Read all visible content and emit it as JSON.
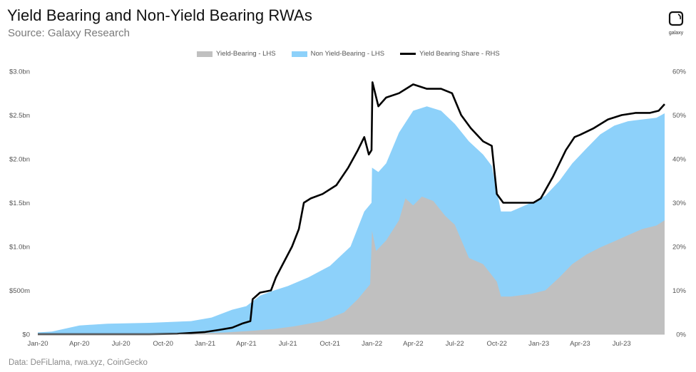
{
  "title": "Yield Bearing and Non-Yield Bearing RWAs",
  "subtitle": "Source: Galaxy Research",
  "footer": "Data: DeFiLlama, rwa.xyz, CoinGecko",
  "logo": {
    "text": "galaxy",
    "icon": "galaxy-logo-icon"
  },
  "colors": {
    "yield": "#c0c0c0",
    "non_yield": "#8dd1fa",
    "share": "#000000"
  },
  "chart_data": {
    "type": "area",
    "title": "Yield Bearing and Non-Yield Bearing RWAs",
    "legend_position": "top-center",
    "grid": false,
    "x_ticks": [
      "Jan-20",
      "Apr-20",
      "Jul-20",
      "Oct-20",
      "Jan-21",
      "Apr-21",
      "Jul-21",
      "Oct-21",
      "Jan-22",
      "Apr-22",
      "Jul-22",
      "Oct-22",
      "Jan-23",
      "Apr-23",
      "Jul-23"
    ],
    "x_range": [
      "2020-01-01",
      "2023-10-03"
    ],
    "y_left": {
      "range": [
        0,
        3.0
      ],
      "unit": "$bn",
      "ticks": [
        "$0",
        "$500m",
        "$1.0bn",
        "$1.5bn",
        "$2.0bn",
        "$2.5bn",
        "$3.0bn"
      ]
    },
    "y_right": {
      "range": [
        0,
        60
      ],
      "unit": "%",
      "ticks": [
        "0%",
        "10%",
        "20%",
        "30%",
        "40%",
        "50%",
        "60%"
      ]
    },
    "series": [
      {
        "name": "Yield-Bearing - LHS",
        "axis": "left",
        "kind": "stacked-area",
        "color": "#c0c0c0",
        "points": [
          [
            "2020-01-01",
            0
          ],
          [
            "2020-06-01",
            0
          ],
          [
            "2020-12-01",
            0.01
          ],
          [
            "2021-02-15",
            0.02
          ],
          [
            "2021-04-15",
            0.04
          ],
          [
            "2021-06-01",
            0.06
          ],
          [
            "2021-07-15",
            0.09
          ],
          [
            "2021-09-15",
            0.15
          ],
          [
            "2021-11-01",
            0.25
          ],
          [
            "2021-12-01",
            0.4
          ],
          [
            "2021-12-28",
            0.57
          ],
          [
            "2022-01-01",
            1.18
          ],
          [
            "2022-01-10",
            0.95
          ],
          [
            "2022-02-01",
            1.07
          ],
          [
            "2022-03-01",
            1.3
          ],
          [
            "2022-03-15",
            1.55
          ],
          [
            "2022-04-01",
            1.47
          ],
          [
            "2022-04-20",
            1.57
          ],
          [
            "2022-05-15",
            1.52
          ],
          [
            "2022-06-10",
            1.35
          ],
          [
            "2022-07-01",
            1.25
          ],
          [
            "2022-08-01",
            0.87
          ],
          [
            "2022-09-01",
            0.8
          ],
          [
            "2022-10-01",
            0.6
          ],
          [
            "2022-10-10",
            0.43
          ],
          [
            "2022-11-01",
            0.43
          ],
          [
            "2022-12-15",
            0.46
          ],
          [
            "2023-01-15",
            0.5
          ],
          [
            "2023-02-15",
            0.65
          ],
          [
            "2023-03-15",
            0.8
          ],
          [
            "2023-04-15",
            0.91
          ],
          [
            "2023-05-15",
            0.99
          ],
          [
            "2023-06-15",
            1.06
          ],
          [
            "2023-07-15",
            1.13
          ],
          [
            "2023-08-15",
            1.2
          ],
          [
            "2023-09-15",
            1.24
          ],
          [
            "2023-10-03",
            1.3
          ]
        ]
      },
      {
        "name": "Non Yield-Bearing - LHS",
        "axis": "left",
        "kind": "stacked-area-total",
        "color": "#8dd1fa",
        "points": [
          [
            "2020-01-01",
            0.02
          ],
          [
            "2020-02-01",
            0.03
          ],
          [
            "2020-04-01",
            0.1
          ],
          [
            "2020-06-01",
            0.12
          ],
          [
            "2020-09-01",
            0.13
          ],
          [
            "2020-12-01",
            0.15
          ],
          [
            "2021-01-15",
            0.19
          ],
          [
            "2021-03-01",
            0.28
          ],
          [
            "2021-04-01",
            0.32
          ],
          [
            "2021-05-01",
            0.44
          ],
          [
            "2021-06-01",
            0.5
          ],
          [
            "2021-07-01",
            0.55
          ],
          [
            "2021-08-15",
            0.65
          ],
          [
            "2021-10-01",
            0.78
          ],
          [
            "2021-11-15",
            1.0
          ],
          [
            "2021-12-15",
            1.4
          ],
          [
            "2021-12-31",
            1.5
          ],
          [
            "2022-01-01",
            1.9
          ],
          [
            "2022-01-15",
            1.85
          ],
          [
            "2022-02-01",
            1.95
          ],
          [
            "2022-03-01",
            2.3
          ],
          [
            "2022-04-01",
            2.55
          ],
          [
            "2022-05-01",
            2.6
          ],
          [
            "2022-06-01",
            2.55
          ],
          [
            "2022-07-01",
            2.4
          ],
          [
            "2022-08-01",
            2.2
          ],
          [
            "2022-09-01",
            2.05
          ],
          [
            "2022-09-20",
            1.92
          ],
          [
            "2022-10-10",
            1.4
          ],
          [
            "2022-11-01",
            1.4
          ],
          [
            "2022-12-15",
            1.5
          ],
          [
            "2023-01-15",
            1.58
          ],
          [
            "2023-02-15",
            1.75
          ],
          [
            "2023-03-15",
            1.95
          ],
          [
            "2023-04-15",
            2.12
          ],
          [
            "2023-05-15",
            2.28
          ],
          [
            "2023-06-15",
            2.38
          ],
          [
            "2023-07-15",
            2.43
          ],
          [
            "2023-08-15",
            2.45
          ],
          [
            "2023-09-15",
            2.47
          ],
          [
            "2023-10-03",
            2.52
          ]
        ]
      },
      {
        "name": "Yield Bearing Share - RHS",
        "axis": "right",
        "kind": "line",
        "color": "#000000",
        "points": [
          [
            "2020-01-01",
            0
          ],
          [
            "2020-09-01",
            0
          ],
          [
            "2020-11-01",
            0.1
          ],
          [
            "2021-01-01",
            0.5
          ],
          [
            "2021-02-01",
            1.0
          ],
          [
            "2021-03-01",
            1.5
          ],
          [
            "2021-03-25",
            2.5
          ],
          [
            "2021-04-10",
            3.0
          ],
          [
            "2021-04-15",
            8.0
          ],
          [
            "2021-05-01",
            9.5
          ],
          [
            "2021-05-25",
            10.0
          ],
          [
            "2021-06-05",
            13.0
          ],
          [
            "2021-06-20",
            16.0
          ],
          [
            "2021-07-10",
            20.0
          ],
          [
            "2021-07-25",
            24.0
          ],
          [
            "2021-08-05",
            30.0
          ],
          [
            "2021-08-20",
            31.0
          ],
          [
            "2021-09-15",
            32.0
          ],
          [
            "2021-10-15",
            34.0
          ],
          [
            "2021-11-10",
            38.0
          ],
          [
            "2021-12-01",
            42.0
          ],
          [
            "2021-12-15",
            45.0
          ],
          [
            "2021-12-25",
            41.0
          ],
          [
            "2021-12-31",
            42.0
          ],
          [
            "2022-01-02",
            57.5
          ],
          [
            "2022-01-15",
            52.0
          ],
          [
            "2022-02-01",
            54.0
          ],
          [
            "2022-03-01",
            55.0
          ],
          [
            "2022-04-01",
            57.0
          ],
          [
            "2022-05-01",
            56.0
          ],
          [
            "2022-06-01",
            56.0
          ],
          [
            "2022-06-25",
            55.0
          ],
          [
            "2022-07-15",
            50.0
          ],
          [
            "2022-08-05",
            47.0
          ],
          [
            "2022-09-01",
            44.0
          ],
          [
            "2022-09-20",
            43.0
          ],
          [
            "2022-10-01",
            32.0
          ],
          [
            "2022-10-15",
            30.0
          ],
          [
            "2022-11-01",
            30.0
          ],
          [
            "2022-12-01",
            30.0
          ],
          [
            "2022-12-20",
            30.0
          ],
          [
            "2023-01-05",
            31.0
          ],
          [
            "2023-02-01",
            36.0
          ],
          [
            "2023-03-01",
            42.0
          ],
          [
            "2023-03-20",
            45.0
          ],
          [
            "2023-04-01",
            45.5
          ],
          [
            "2023-05-01",
            47.0
          ],
          [
            "2023-06-01",
            49.0
          ],
          [
            "2023-07-01",
            50.0
          ],
          [
            "2023-08-01",
            50.5
          ],
          [
            "2023-09-01",
            50.5
          ],
          [
            "2023-09-20",
            51.0
          ],
          [
            "2023-10-03",
            52.5
          ]
        ]
      }
    ]
  }
}
